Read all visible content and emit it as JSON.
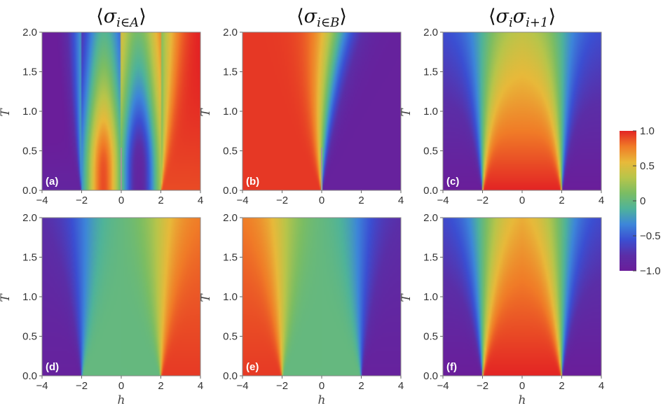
{
  "titles": [
    {
      "pre": "⟨",
      "sym": "σ",
      "sub": "i∈A",
      "post": "⟩"
    },
    {
      "pre": "⟨",
      "sym": "σ",
      "sub": "i∈B",
      "post": "⟩"
    },
    {
      "pre": "⟨",
      "sym": "σ",
      "sub": "i",
      "sym2": "σ",
      "sub2": "i+1",
      "post": "⟩"
    }
  ],
  "colorbar": {
    "ticks": [
      "1.0",
      "0.5",
      "0",
      "−0.5",
      "−1.0"
    ],
    "range": [
      -1,
      1
    ],
    "colors": [
      "#e32424",
      "#f07b27",
      "#e8b93a",
      "#b8c54a",
      "#7bbd63",
      "#4fb39a",
      "#3d86d9",
      "#3b4fd2",
      "#5b2ea7",
      "#6a1e9a"
    ]
  },
  "chart_data": [
    {
      "type": "heatmap",
      "panel_label": "(a)",
      "quantity": "sigma_i_in_A",
      "xlabel": "",
      "ylabel": "T",
      "xlim": [
        -4,
        4
      ],
      "ylim": [
        0,
        2
      ],
      "xticks": [
        "−4",
        "−2",
        "0",
        "2",
        "4"
      ],
      "yticks": [
        "0.0",
        "0.5",
        "1.0",
        "1.5",
        "2.0"
      ],
      "critical_points": [
        -2,
        0,
        2
      ]
    },
    {
      "type": "heatmap",
      "panel_label": "(b)",
      "quantity": "sigma_i_in_B",
      "xlabel": "",
      "ylabel": "T",
      "xlim": [
        -4,
        4
      ],
      "ylim": [
        0,
        2
      ],
      "xticks": [
        "−4",
        "−2",
        "0",
        "2",
        "4"
      ],
      "yticks": [
        "0.0",
        "0.5",
        "1.0",
        "1.5",
        "2.0"
      ],
      "critical_points": [
        0
      ]
    },
    {
      "type": "heatmap",
      "panel_label": "(c)",
      "quantity": "sigma_i_sigma_i+1",
      "xlabel": "",
      "ylabel": "T",
      "xlim": [
        -4,
        4
      ],
      "ylim": [
        0,
        2
      ],
      "xticks": [
        "−4",
        "−2",
        "0",
        "2",
        "4"
      ],
      "yticks": [
        "0.0",
        "0.5",
        "1.0",
        "1.5",
        "2.0"
      ],
      "critical_points": [
        -2,
        2
      ]
    },
    {
      "type": "heatmap",
      "panel_label": "(d)",
      "quantity": "sigma_i_in_A",
      "xlabel": "h",
      "ylabel": "T",
      "xlim": [
        -4,
        4
      ],
      "ylim": [
        0,
        2
      ],
      "xticks": [
        "−4",
        "−2",
        "0",
        "2",
        "4"
      ],
      "yticks": [
        "0.0",
        "0.5",
        "1.0",
        "1.5",
        "2.0"
      ],
      "critical_points": [
        -2,
        2
      ]
    },
    {
      "type": "heatmap",
      "panel_label": "(e)",
      "quantity": "sigma_i_in_B",
      "xlabel": "h",
      "ylabel": "T",
      "xlim": [
        -4,
        4
      ],
      "ylim": [
        0,
        2
      ],
      "xticks": [
        "−4",
        "−2",
        "0",
        "2",
        "4"
      ],
      "yticks": [
        "0.0",
        "0.5",
        "1.0",
        "1.5",
        "2.0"
      ],
      "critical_points": [
        -2,
        2
      ]
    },
    {
      "type": "heatmap",
      "panel_label": "(f)",
      "quantity": "sigma_i_sigma_i+1",
      "xlabel": "h",
      "ylabel": "T",
      "xlim": [
        -4,
        4
      ],
      "ylim": [
        0,
        2
      ],
      "xticks": [
        "−4",
        "−2",
        "0",
        "2",
        "4"
      ],
      "yticks": [
        "0.0",
        "0.5",
        "1.0",
        "1.5",
        "2.0"
      ],
      "critical_points": [
        -2,
        2
      ]
    }
  ]
}
